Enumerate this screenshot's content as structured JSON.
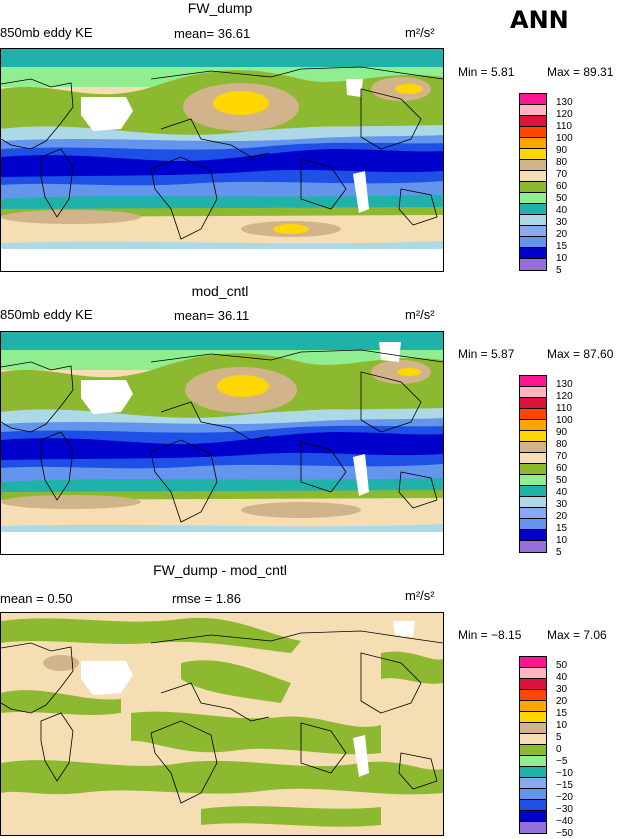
{
  "season": "ANN",
  "panels": [
    {
      "title": "FW_dump",
      "left_label": "850mb eddy KE",
      "mid_label": "mean=  36.61",
      "units": "m²/s²",
      "min_text": "Min =   5.81",
      "max_text": "Max =  89.31"
    },
    {
      "title": "mod_cntl",
      "left_label": "850mb eddy KE",
      "mid_label": "mean=  36.11",
      "units": "m²/s²",
      "min_text": "Min =   5.87",
      "max_text": "Max =  87.60"
    },
    {
      "title": "FW_dump - mod_cntl",
      "left_label": "mean =   0.50",
      "mid_label": "rmse =   1.86",
      "units": "m²/s²",
      "min_text": "Min =  −8.15",
      "max_text": "Max =   7.06"
    }
  ],
  "chart_data": [
    {
      "type": "heatmap",
      "title": "FW_dump",
      "variable": "850mb eddy KE",
      "units": "m²/s²",
      "mean": 36.61,
      "min": 5.81,
      "max": 89.31,
      "contour_levels": [
        5,
        10,
        15,
        20,
        30,
        40,
        50,
        60,
        70,
        80,
        90,
        100,
        110,
        120,
        130
      ],
      "colors": [
        "#9370DB",
        "#0000CD",
        "#1E50E6",
        "#6495ED",
        "#87A9F0",
        "#ADD8E6",
        "#20B2AA",
        "#90EE90",
        "#8DB930",
        "#F5DEB3",
        "#D2B48C",
        "#FFD700",
        "#FFA500",
        "#FF4500",
        "#DC143C",
        "#FFB6C1",
        "#FF1493"
      ]
    },
    {
      "type": "heatmap",
      "title": "mod_cntl",
      "variable": "850mb eddy KE",
      "units": "m²/s²",
      "mean": 36.11,
      "min": 5.87,
      "max": 87.6,
      "contour_levels": [
        5,
        10,
        15,
        20,
        30,
        40,
        50,
        60,
        70,
        80,
        90,
        100,
        110,
        120,
        130
      ],
      "colors": [
        "#9370DB",
        "#0000CD",
        "#1E50E6",
        "#6495ED",
        "#87A9F0",
        "#ADD8E6",
        "#20B2AA",
        "#90EE90",
        "#8DB930",
        "#F5DEB3",
        "#D2B48C",
        "#FFD700",
        "#FFA500",
        "#FF4500",
        "#DC143C",
        "#FFB6C1",
        "#FF1493"
      ]
    },
    {
      "type": "heatmap",
      "title": "FW_dump - mod_cntl",
      "units": "m²/s²",
      "mean": 0.5,
      "rmse": 1.86,
      "min": -8.15,
      "max": 7.06,
      "contour_levels": [
        -50,
        -40,
        -30,
        -20,
        -15,
        -10,
        -5,
        0,
        5,
        10,
        15,
        20,
        30,
        40,
        50
      ],
      "colors": [
        "#9370DB",
        "#0000CD",
        "#1E50E6",
        "#6495ED",
        "#87A9F0",
        "#20B2AA",
        "#90EE90",
        "#8DB930",
        "#F5DEB3",
        "#D2B48C",
        "#FFD700",
        "#FFA500",
        "#FF4500",
        "#DC143C",
        "#FFB6C1",
        "#FF1493"
      ]
    }
  ]
}
